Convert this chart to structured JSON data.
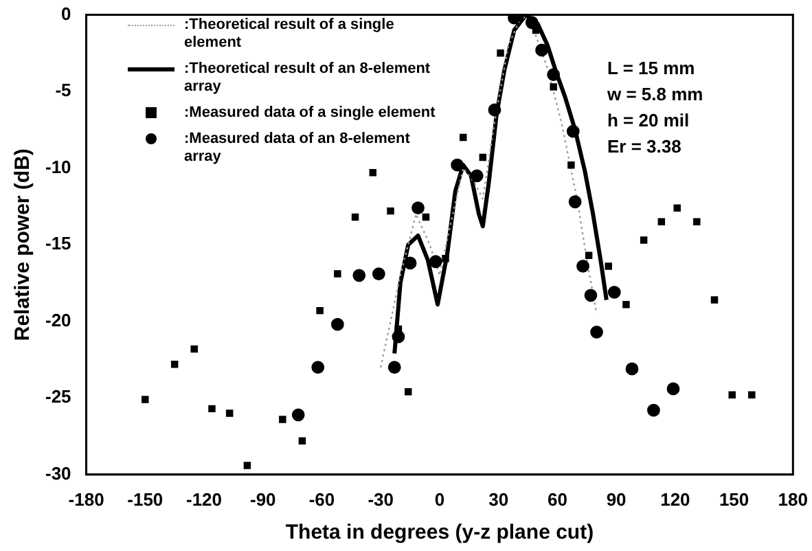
{
  "chart_data": {
    "type": "line",
    "xlabel": "Theta in degrees (y-z plane cut)",
    "ylabel": "Relative power (dB)",
    "xlim": [
      -180,
      180
    ],
    "xticks": [
      -180,
      -150,
      -120,
      -90,
      -60,
      -30,
      0,
      30,
      60,
      90,
      120,
      150,
      180
    ],
    "ylim": [
      -30,
      0
    ],
    "yticks": [
      -30,
      -25,
      -20,
      -15,
      -10,
      -5,
      0
    ],
    "grid": false,
    "legend": "top left",
    "annotations": [
      "L = 15 mm",
      "w = 5.8 mm",
      "h = 20 mil",
      "Er = 3.38"
    ],
    "series": [
      {
        "name": ":Theoretical result of a single element",
        "line_style": "dotted",
        "marker": "none",
        "color": "#9a9a9a",
        "x": [
          -30,
          -20,
          -12,
          -5,
          0,
          5,
          12,
          18,
          22,
          28,
          35,
          42,
          48,
          55,
          62,
          70,
          75,
          80
        ],
        "values": [
          -23,
          -17,
          -13,
          -15,
          -17,
          -14,
          -10,
          -11,
          -12,
          -7,
          -2,
          0,
          -1,
          -3.5,
          -7,
          -12,
          -16,
          -19.5
        ]
      },
      {
        "name": ":Theoretical result of an 8-element array",
        "line_style": "solid",
        "marker": "none",
        "color": "#000000",
        "x": [
          -23,
          -20,
          -16,
          -11,
          -6,
          -1,
          4,
          8,
          12,
          16,
          20,
          22,
          25,
          29,
          33,
          38,
          44,
          50,
          55,
          59,
          64,
          69,
          74,
          78,
          82,
          85
        ],
        "values": [
          -22.1,
          -17.5,
          -15,
          -14.4,
          -16,
          -18.9,
          -15.5,
          -11.5,
          -9.8,
          -10.5,
          -13,
          -13.8,
          -11,
          -6.5,
          -3.6,
          -1,
          0,
          -0.6,
          -2,
          -3.6,
          -5.4,
          -7.5,
          -10.2,
          -12.9,
          -16,
          -18.6
        ]
      },
      {
        "name": ":Measured data of a single element",
        "type": "scatter",
        "marker": "square",
        "color": "#000000",
        "x": [
          -150,
          -135,
          -125,
          -116,
          -107,
          -98,
          -80,
          -70,
          -61,
          -52,
          -43,
          -34,
          -25,
          -21,
          -16,
          -7,
          3,
          12,
          22,
          31,
          41,
          49,
          58,
          67,
          76,
          86,
          95,
          104,
          113,
          121,
          131,
          140,
          149,
          159
        ],
        "values": [
          -25.1,
          -22.8,
          -21.8,
          -25.7,
          -26,
          -29.4,
          -26.4,
          -27.8,
          -19.3,
          -16.9,
          -13.2,
          -10.3,
          -12.8,
          -20.5,
          -24.6,
          -13.2,
          -15.9,
          -8,
          -9.3,
          -2.5,
          0,
          -1,
          -4.7,
          -9.8,
          -15.7,
          -16.4,
          -18.9,
          -14.7,
          -13.5,
          -12.6,
          -13.5,
          -18.6,
          -24.8,
          -24.8
        ]
      },
      {
        "name": ":Measured data of an 8-element array",
        "type": "scatter",
        "marker": "circle",
        "color": "#000000",
        "x": [
          -72,
          -62,
          -52,
          -41,
          -31,
          -23,
          -21,
          -15,
          -11,
          -2,
          9,
          19,
          28,
          38,
          47,
          52,
          58,
          68,
          69,
          73,
          77,
          80,
          89,
          98,
          109,
          119
        ],
        "values": [
          -26.1,
          -23,
          -20.2,
          -17,
          -16.9,
          -23,
          -21,
          -16.2,
          -12.6,
          -16.1,
          -9.8,
          -10.5,
          -6.2,
          -0.2,
          -0.5,
          -2.3,
          -3.9,
          -7.6,
          -12.2,
          -16.4,
          -18.3,
          -20.7,
          -18.1,
          -23.1,
          -25.8,
          -24.4
        ]
      }
    ]
  }
}
